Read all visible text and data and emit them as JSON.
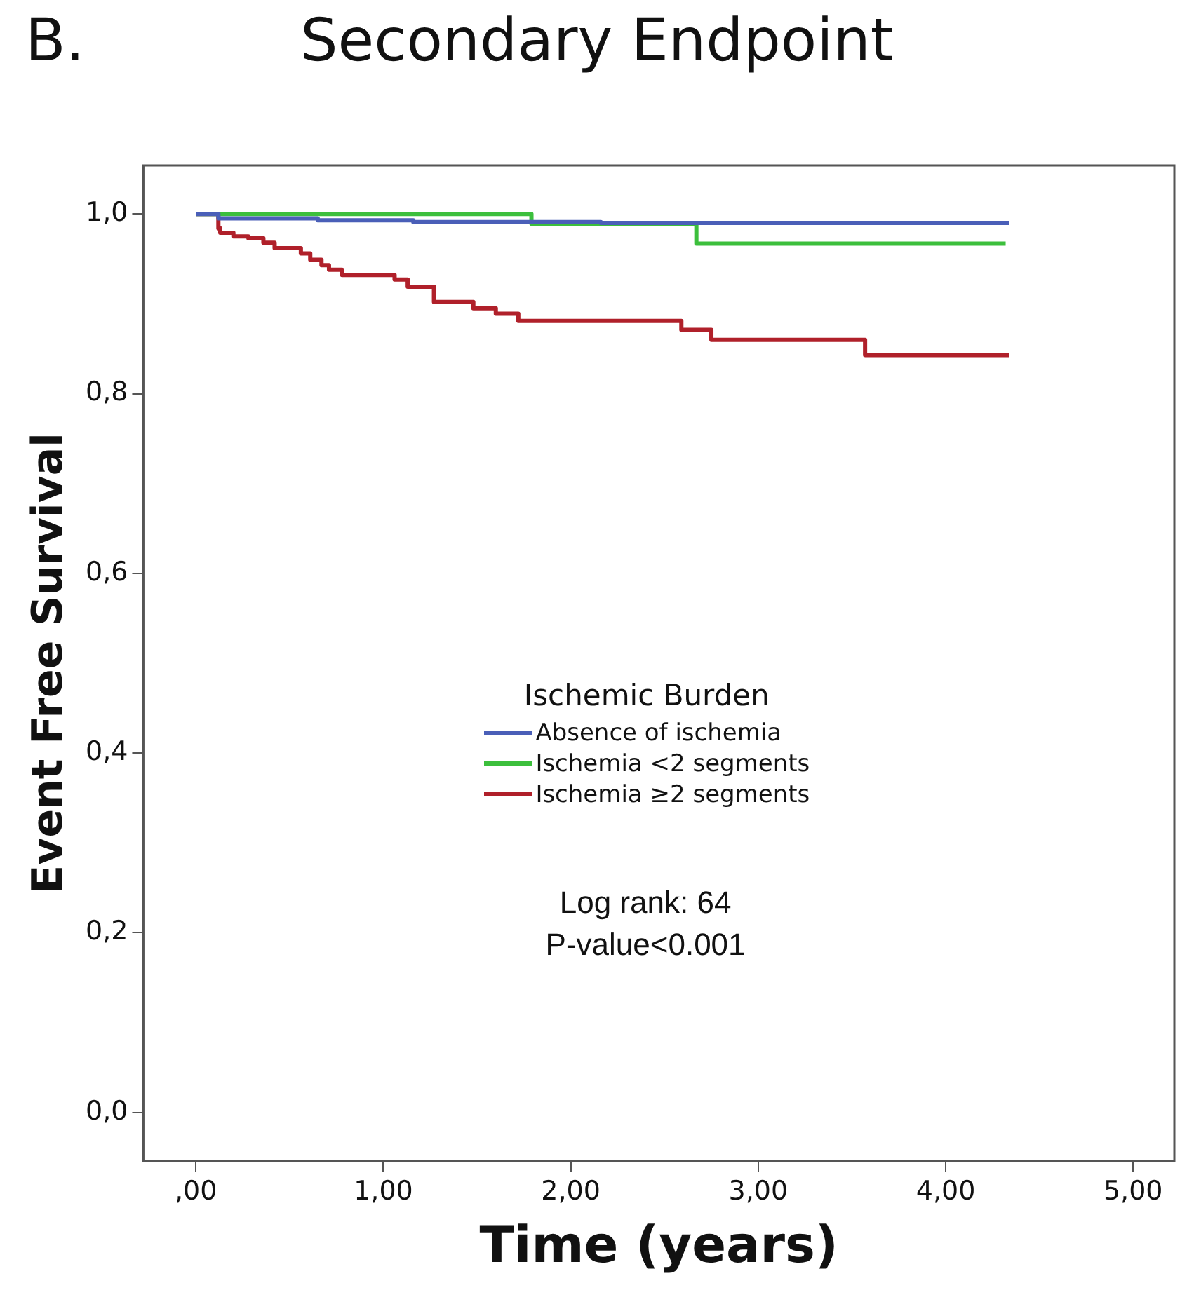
{
  "chart_data": {
    "type": "step",
    "title": "Secondary Endpoint",
    "xlabel": "Time (years)",
    "ylabel": "Event Free Survival",
    "legend_title": "Ischemic Burden",
    "series": [
      {
        "name": "Absence of ischemia",
        "color": "#4a5fb8",
        "x": [
          0,
          0.12,
          0.65,
          1.16,
          2.16,
          4.34
        ],
        "values": [
          1.0,
          0.995,
          0.993,
          0.991,
          0.99,
          0.99
        ]
      },
      {
        "name": "Ischemia <2 segments",
        "color": "#3cbf3c",
        "x": [
          0,
          1.79,
          2.67,
          4.32
        ],
        "values": [
          1.0,
          0.989,
          0.967,
          0.967
        ]
      },
      {
        "name": "Ischemia ≥2 segments",
        "color": "#b0202a",
        "x": [
          0,
          0.12,
          0.13,
          0.2,
          0.28,
          0.36,
          0.42,
          0.56,
          0.61,
          0.67,
          0.71,
          0.78,
          1.06,
          1.13,
          1.27,
          1.48,
          1.6,
          1.72,
          2.59,
          2.75,
          3.57,
          4.34
        ],
        "values": [
          1.0,
          0.984,
          0.979,
          0.975,
          0.973,
          0.968,
          0.962,
          0.956,
          0.949,
          0.943,
          0.938,
          0.932,
          0.927,
          0.919,
          0.902,
          0.895,
          0.889,
          0.881,
          0.871,
          0.86,
          0.843,
          0.843
        ]
      }
    ],
    "xlim": [
      -0.28,
      5.22
    ],
    "ylim": [
      -0.054,
      1.054
    ],
    "xticks": [
      {
        "value": 0,
        "label": ",00"
      },
      {
        "value": 1,
        "label": "1,00"
      },
      {
        "value": 2,
        "label": "2,00"
      },
      {
        "value": 3,
        "label": "3,00"
      },
      {
        "value": 4,
        "label": "4,00"
      },
      {
        "value": 5,
        "label": "5,00"
      }
    ],
    "yticks": [
      {
        "value": 0,
        "label": "0,0"
      },
      {
        "value": 0.2,
        "label": "0,2"
      },
      {
        "value": 0.4,
        "label": "0,4"
      },
      {
        "value": 0.6,
        "label": "0,6"
      },
      {
        "value": 0.8,
        "label": "0,8"
      },
      {
        "value": 1,
        "label": "1,0"
      }
    ],
    "legend": "center",
    "grid": false,
    "annotations": [
      "B.",
      "Log rank: 64",
      "P-value<0.001"
    ]
  }
}
